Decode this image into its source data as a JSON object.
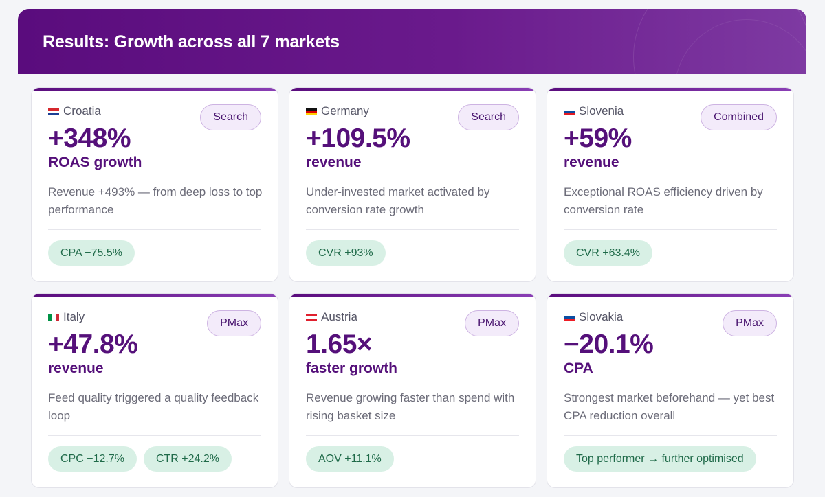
{
  "header": {
    "title": "Results: Growth across all 7 markets"
  },
  "cards": [
    {
      "country": "Croatia",
      "flag_colors": [
        "#d6282d",
        "#ffffff",
        "#1c3f94"
      ],
      "channel": "Search",
      "metric": "+348%",
      "metric_label": "ROAS growth",
      "description": "Revenue +493% — from deep loss to top performance",
      "tags": [
        "CPA −75.5%"
      ]
    },
    {
      "country": "Germany",
      "flag_colors": [
        "#111111",
        "#dd0000",
        "#ffce00"
      ],
      "channel": "Search",
      "metric": "+109.5%",
      "metric_label": "revenue",
      "description": "Under-invested market activated by conversion rate growth",
      "tags": [
        "CVR +93%"
      ]
    },
    {
      "country": "Slovenia",
      "flag_colors": [
        "#ffffff",
        "#0a4ba0",
        "#e21a22"
      ],
      "channel": "Combined",
      "metric": "+59%",
      "metric_label": "revenue",
      "description": "Exceptional ROAS efficiency driven by conversion rate",
      "tags": [
        "CVR +63.4%"
      ]
    },
    {
      "country": "Italy",
      "flag_colors": [
        "#009246",
        "#ffffff",
        "#ce2b37"
      ],
      "channel": "PMax",
      "metric": "+47.8%",
      "metric_label": "revenue",
      "description": "Feed quality triggered a quality feedback loop",
      "tags": [
        "CPC −12.7%",
        "CTR +24.2%"
      ]
    },
    {
      "country": "Austria",
      "flag_colors": [
        "#e0202e",
        "#ffffff",
        "#e0202e"
      ],
      "channel": "PMax",
      "metric": "1.65×",
      "metric_label": "faster growth",
      "description": "Revenue growing faster than spend with rising basket size",
      "tags": [
        "AOV +11.1%"
      ]
    },
    {
      "country": "Slovakia",
      "flag_colors": [
        "#ffffff",
        "#0b4ea2",
        "#ee1c25"
      ],
      "channel": "PMax",
      "metric": "−20.1%",
      "metric_label": "CPA",
      "description": "Strongest market beforehand — yet best CPA reduction overall",
      "tags": [
        "Top performer → further optimised"
      ]
    }
  ]
}
